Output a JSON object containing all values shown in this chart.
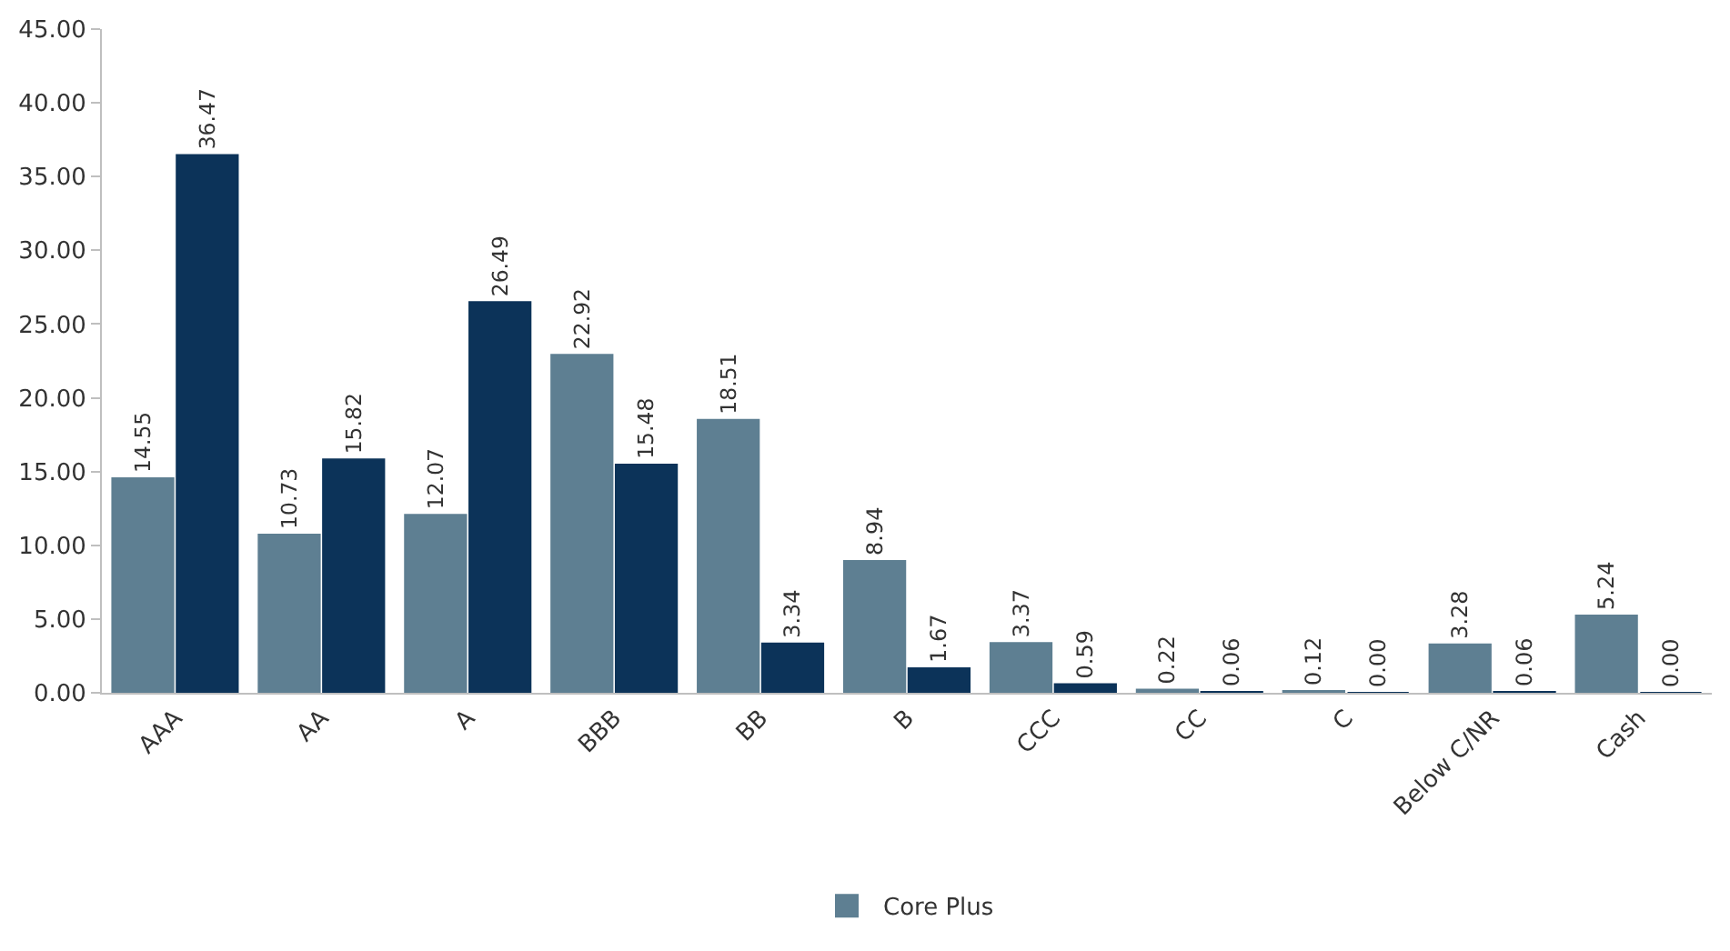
{
  "chart_data": {
    "type": "bar",
    "categories": [
      "AAA",
      "AA",
      "A",
      "BBB",
      "BB",
      "B",
      "CCC",
      "CC",
      "C",
      "Below C/NR",
      "Cash"
    ],
    "series": [
      {
        "name": "Core Plus",
        "color": "#5e7f92",
        "values": [
          14.55,
          10.73,
          12.07,
          22.92,
          18.51,
          8.94,
          3.37,
          0.22,
          0.12,
          3.28,
          5.24
        ],
        "value_labels": [
          "14.55",
          "10.73",
          "12.07",
          "22.92",
          "18.51",
          "8.94",
          "3.37",
          "0.22",
          "0.12",
          "3.28",
          "5.24"
        ]
      },
      {
        "color": "#0c3359",
        "values": [
          36.47,
          15.82,
          26.49,
          15.48,
          3.34,
          1.67,
          0.59,
          0.06,
          0.0,
          0.06,
          0.0
        ],
        "value_labels": [
          "36.47",
          "15.82",
          "26.49",
          "15.48",
          "3.34",
          "1.67",
          "0.59",
          "0.06",
          "0.00",
          "0.06",
          "0.00"
        ]
      }
    ],
    "ylim": [
      0,
      45
    ],
    "yticks": [
      {
        "value": 0,
        "label": "0.00"
      },
      {
        "value": 5,
        "label": "5.00"
      },
      {
        "value": 10,
        "label": "10.00"
      },
      {
        "value": 15,
        "label": "15.00"
      },
      {
        "value": 20,
        "label": "20.00"
      },
      {
        "value": 25,
        "label": "25.00"
      },
      {
        "value": 30,
        "label": "30.00"
      },
      {
        "value": 35,
        "label": "35.00"
      },
      {
        "value": 40,
        "label": "40.00"
      },
      {
        "value": 45,
        "label": "45.00"
      }
    ],
    "legend": "bottom"
  }
}
